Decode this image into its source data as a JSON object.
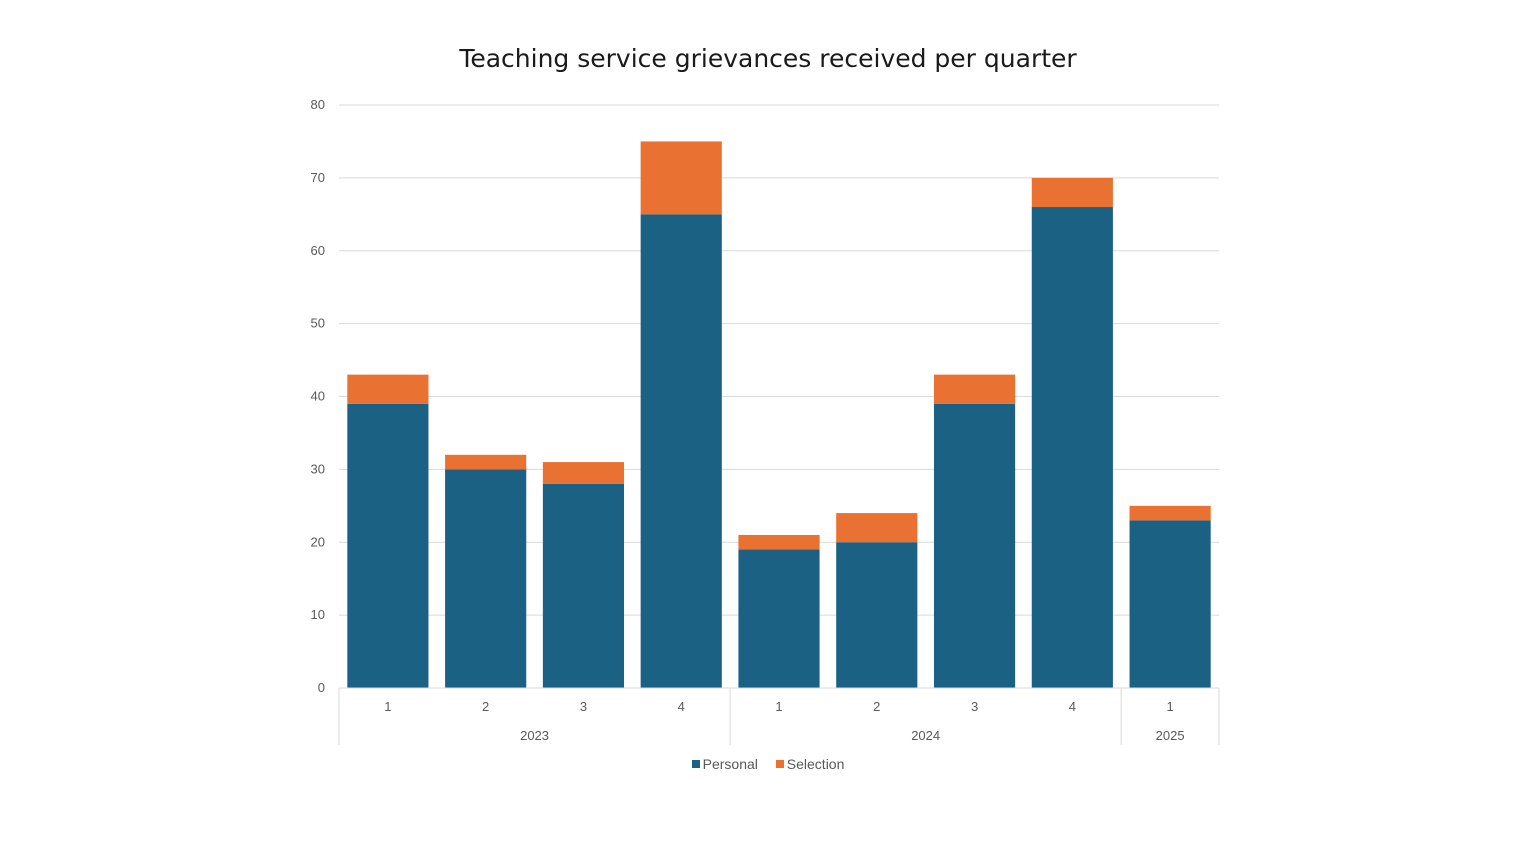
{
  "chart_data": {
    "type": "bar",
    "stacked": true,
    "title": "Teaching service grievances received per quarter",
    "xlabel": "",
    "ylabel": "",
    "ylim": [
      0,
      80
    ],
    "yticks": [
      0,
      10,
      20,
      30,
      40,
      50,
      60,
      70,
      80
    ],
    "grid": true,
    "legend_position": "bottom",
    "categories": [
      "1",
      "2",
      "3",
      "4",
      "1",
      "2",
      "3",
      "4",
      "1"
    ],
    "groups": [
      {
        "label": "2023",
        "count": 4
      },
      {
        "label": "2024",
        "count": 4
      },
      {
        "label": "2025",
        "count": 1
      }
    ],
    "series": [
      {
        "name": "Personal",
        "color": "#1a6184",
        "values": [
          39,
          30,
          28,
          65,
          19,
          20,
          39,
          66,
          23
        ]
      },
      {
        "name": "Selection",
        "color": "#e97132",
        "values": [
          4,
          2,
          3,
          10,
          2,
          4,
          4,
          4,
          2
        ]
      }
    ]
  }
}
